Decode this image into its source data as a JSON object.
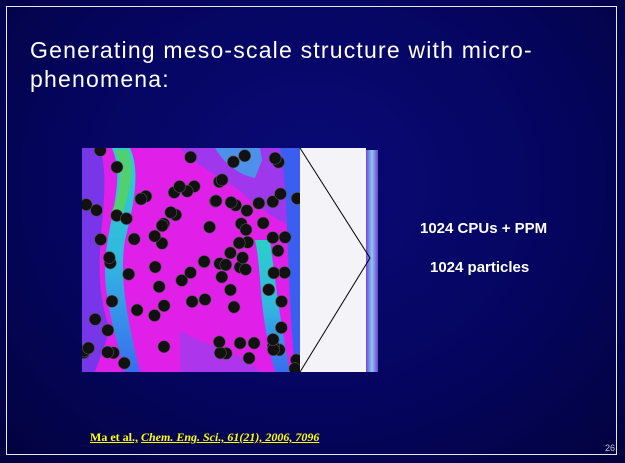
{
  "slide": {
    "title": "Generating meso-scale structure with micro-phenomena:",
    "bullets": [
      "1024 CPUs + PPM",
      "1024 particles"
    ],
    "citation": {
      "authors": "Ma et al.,",
      "source": "Chem. Eng. Sci., 61(21), 2006, 7096"
    },
    "page_number": "26"
  }
}
